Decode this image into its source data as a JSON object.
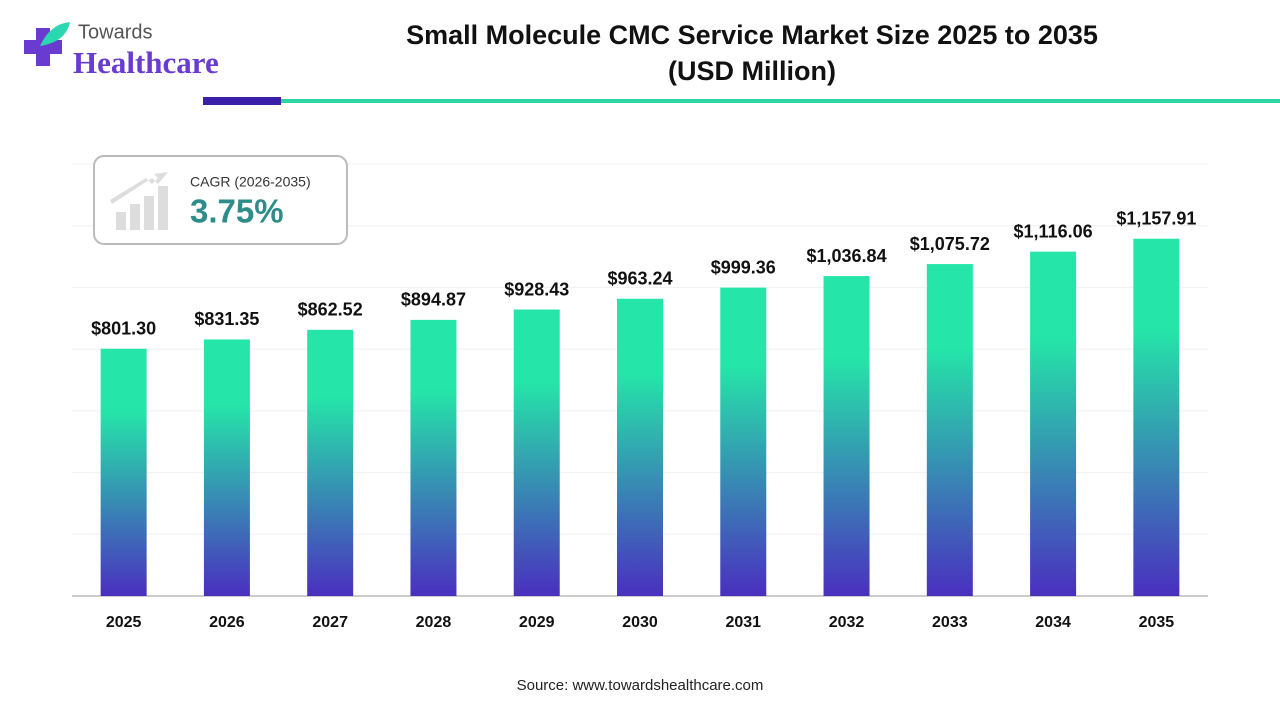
{
  "header": {
    "logo_top": "Towards",
    "logo_bottom": "Healthcare"
  },
  "chart_data": {
    "type": "bar",
    "title": [
      "Small Molecule CMC Service Market Size 2025 to 2035",
      "(USD Million)"
    ],
    "categories": [
      "2025",
      "2026",
      "2027",
      "2028",
      "2029",
      "2030",
      "2031",
      "2032",
      "2033",
      "2034",
      "2035"
    ],
    "values": [
      801.3,
      831.35,
      862.52,
      894.87,
      928.43,
      963.24,
      999.36,
      1036.84,
      1075.72,
      1116.06,
      1157.91
    ],
    "value_labels": [
      "$801.30",
      "$831.35",
      "$862.52",
      "$894.87",
      "$928.43",
      "$963.24",
      "$999.36",
      "$1,036.84",
      "$1,075.72",
      "$1,116.06",
      "$1,157.91"
    ],
    "gradient": [
      "#25e6a8",
      "#4a2fbf"
    ],
    "ylim": [
      0,
      1400
    ],
    "yticks": [
      0,
      200,
      400,
      600,
      800,
      1000,
      1200,
      1400
    ],
    "grid": true
  },
  "cagr": {
    "label": "CAGR (2026-2035)",
    "value": "3.75%"
  },
  "source": "Source: www.towardshealthcare.com"
}
